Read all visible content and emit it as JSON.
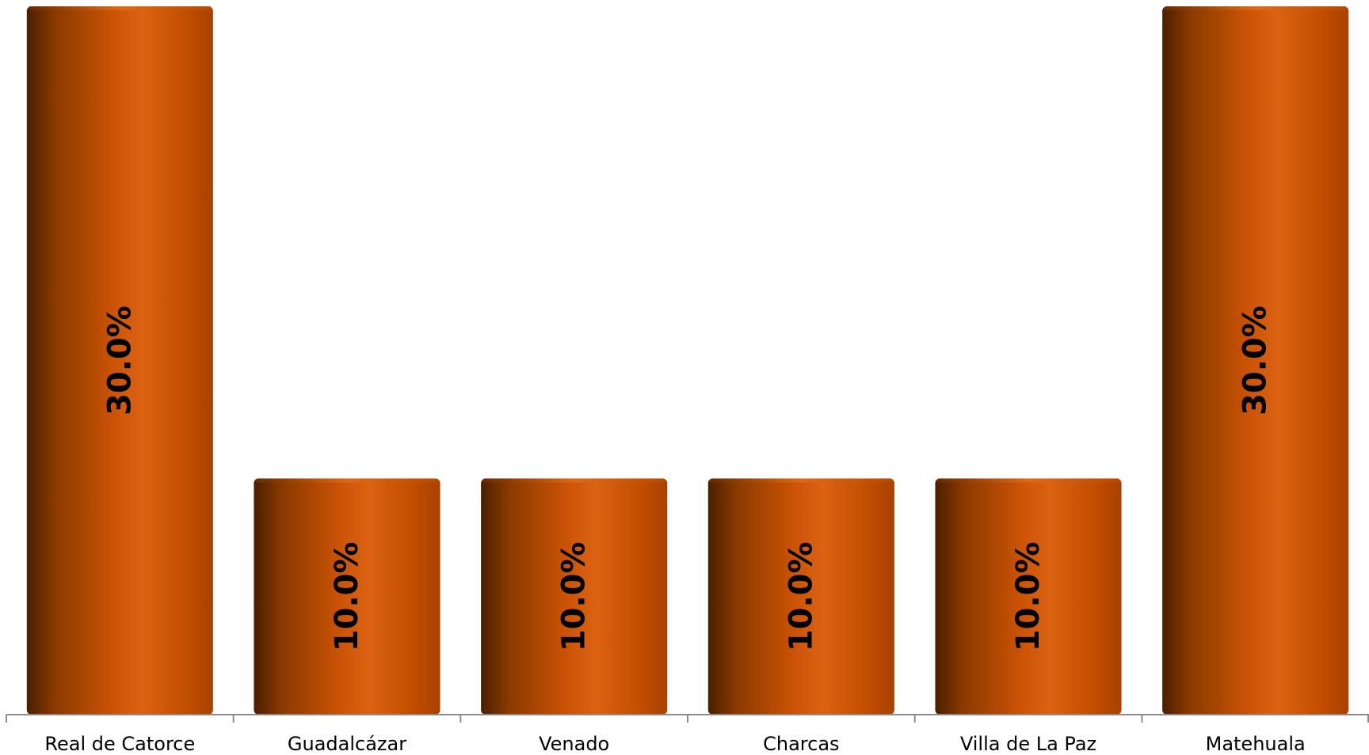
{
  "chart_data": {
    "type": "bar",
    "categories": [
      "Real de Catorce",
      "Guadalcázar",
      "Venado",
      "Charcas",
      "Villa de La Paz",
      "Matehuala"
    ],
    "values": [
      30.0,
      10.0,
      10.0,
      10.0,
      10.0,
      30.0
    ],
    "data_labels": [
      "30.0%",
      "10.0%",
      "10.0%",
      "10.0%",
      "10.0%",
      "30.0%"
    ],
    "unit": "%",
    "ylim": [
      0,
      30
    ],
    "grid": false,
    "legend": "none",
    "colors": {
      "bar_dark": "#4a1f00",
      "bar_mid": "#d9600f",
      "bar_base": "#c24e00",
      "axis": "#8c8c8c"
    }
  }
}
